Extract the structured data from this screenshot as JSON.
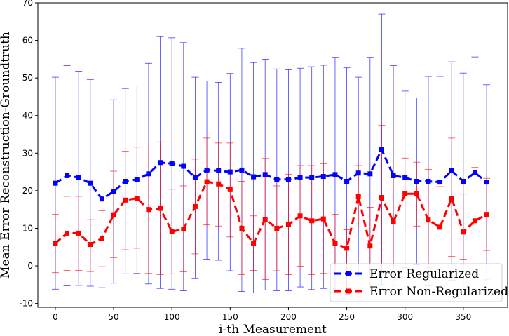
{
  "chart_data": {
    "type": "line",
    "xlabel": "i-th Measurement",
    "ylabel": "Mean Error Reconstruction-Groundtruth",
    "xlim": [
      -15,
      388
    ],
    "ylim": [
      -11,
      70
    ],
    "xticks": [
      0,
      50,
      100,
      150,
      200,
      250,
      300,
      350
    ],
    "yticks": [
      -10,
      0,
      10,
      20,
      30,
      40,
      50,
      60,
      70
    ],
    "grid": false,
    "legend_position": "lower-right",
    "x": [
      0,
      10,
      20,
      30,
      40,
      50,
      60,
      70,
      80,
      90,
      100,
      110,
      120,
      130,
      140,
      150,
      160,
      170,
      180,
      190,
      200,
      210,
      220,
      230,
      240,
      250,
      260,
      270,
      280,
      290,
      300,
      310,
      320,
      330,
      340,
      350,
      360,
      370
    ],
    "series": [
      {
        "name": "Error Regularized",
        "color": "#0000ff",
        "marker": "square",
        "linestyle": "dashed",
        "values": [
          22.0,
          24.0,
          23.5,
          22.0,
          17.8,
          19.8,
          22.5,
          23.0,
          24.5,
          27.5,
          27.2,
          26.5,
          23.5,
          25.5,
          25.3,
          25.0,
          25.5,
          23.7,
          24.3,
          23.0,
          23.0,
          23.5,
          23.5,
          23.8,
          24.3,
          22.5,
          24.7,
          24.5,
          31.0,
          24.0,
          23.5,
          22.5,
          22.5,
          22.3,
          25.3,
          22.5,
          24.8,
          22.3
        ],
        "err_low": [
          -6.2,
          -5.3,
          -5.2,
          -5.4,
          -5.8,
          -4.6,
          -2.1,
          -2.0,
          -4.8,
          -6.0,
          -6.2,
          -6.6,
          -3.4,
          1.8,
          1.5,
          -1.3,
          -6.8,
          -7.2,
          -6.4,
          -6.6,
          -6.6,
          -5.6,
          -6.3,
          -6.0,
          -7.0,
          -7.6,
          -2.0,
          -2.2,
          -5.0,
          -5.2,
          -0.5,
          0.3,
          -5.3,
          -5.8,
          -3.8,
          -6.3,
          -6.2,
          -3.7
        ],
        "err_high": [
          50.2,
          53.3,
          51.8,
          49.6,
          41.0,
          44.2,
          47.2,
          47.9,
          53.9,
          61.0,
          60.7,
          59.4,
          50.2,
          49.2,
          48.8,
          51.2,
          57.9,
          54.1,
          55.0,
          52.4,
          52.2,
          52.6,
          53.0,
          53.4,
          55.5,
          52.7,
          50.2,
          55.5,
          67.0,
          53.3,
          46.5,
          44.7,
          50.4,
          50.4,
          54.3,
          51.3,
          55.6,
          48.2
        ]
      },
      {
        "name": "Error Non-Regularized",
        "color": "#ff0000",
        "marker": "square",
        "linestyle": "dashed",
        "values": [
          6.0,
          8.7,
          8.7,
          5.7,
          7.3,
          13.6,
          17.5,
          18.0,
          15.0,
          15.3,
          9.1,
          9.8,
          15.8,
          22.4,
          21.8,
          20.3,
          10.0,
          6.0,
          12.4,
          10.0,
          11.0,
          13.3,
          12.0,
          12.5,
          6.0,
          4.7,
          18.5,
          5.3,
          18.2,
          11.7,
          19.2,
          19.2,
          12.2,
          10.3,
          18.0,
          9.0,
          12.0,
          13.7
        ],
        "err_low": [
          -1.8,
          -1.2,
          -1.2,
          -1.5,
          -0.2,
          2.2,
          4.3,
          4.7,
          -2.0,
          -2.3,
          -2.1,
          -1.6,
          3.2,
          10.9,
          10.6,
          7.7,
          -2.3,
          -1.2,
          -3.6,
          -1.3,
          -2.3,
          -0.1,
          -2.3,
          -2.0,
          -1.8,
          -7.5,
          10.4,
          -5.0,
          -1.1,
          -0.9,
          9.8,
          10.6,
          -0.4,
          -0.8,
          2.5,
          1.8,
          -2.3,
          4.1
        ],
        "err_high": [
          13.7,
          18.5,
          18.5,
          12.3,
          14.7,
          25.2,
          30.5,
          31.6,
          32.2,
          33.0,
          20.4,
          21.3,
          28.4,
          34.0,
          32.7,
          32.7,
          22.5,
          13.3,
          28.6,
          21.3,
          24.4,
          26.7,
          26.7,
          27.2,
          13.7,
          9.6,
          26.7,
          15.6,
          37.4,
          24.2,
          28.7,
          27.6,
          25.7,
          21.1,
          34.0,
          19.1,
          26.2,
          23.3
        ]
      }
    ]
  }
}
